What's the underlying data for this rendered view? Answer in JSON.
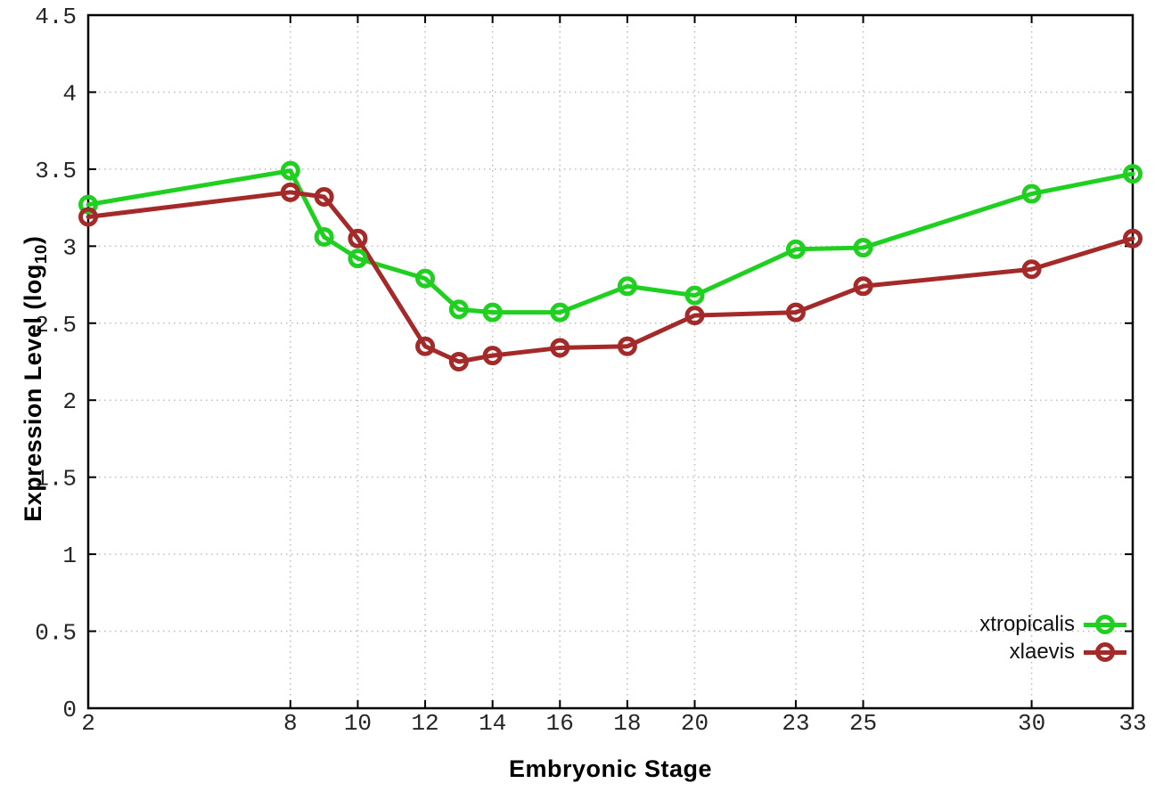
{
  "chart_data": {
    "type": "line",
    "title": "",
    "xlabel": "Embryonic Stage",
    "ylabel": "Expression Level (log10)",
    "xlim": [
      2,
      33
    ],
    "ylim": [
      0,
      4.5
    ],
    "grid": true,
    "legend_position": "inside-bottom-right",
    "x_ticks": [
      2,
      8,
      10,
      12,
      14,
      16,
      18,
      20,
      23,
      25,
      30,
      33
    ],
    "x_tick_labels": [
      "2",
      "8",
      "10",
      "12",
      "14",
      "16",
      "18",
      "20",
      "23",
      "25",
      "30",
      "33"
    ],
    "y_ticks": [
      0,
      0.5,
      1,
      1.5,
      2,
      2.5,
      3,
      3.5,
      4,
      4.5
    ],
    "y_tick_labels": [
      "0",
      "0.5",
      "1",
      "1.5",
      "2",
      "2.5",
      "3",
      "3.5",
      "4",
      "4.5"
    ],
    "x": [
      2,
      8,
      9,
      10,
      12,
      13,
      14,
      16,
      18,
      20,
      23,
      25,
      30,
      33
    ],
    "series": [
      {
        "name": "xtropicalis",
        "color": "#20d020",
        "marker": "open-circle",
        "values": [
          3.27,
          3.49,
          3.06,
          2.92,
          2.79,
          2.59,
          2.57,
          2.57,
          2.74,
          2.68,
          2.98,
          2.99,
          3.34,
          3.47
        ]
      },
      {
        "name": "xlaevis",
        "color": "#a42a2a",
        "marker": "open-circle",
        "values": [
          3.19,
          3.35,
          3.32,
          3.05,
          2.35,
          2.25,
          2.29,
          2.34,
          2.35,
          2.55,
          2.57,
          2.74,
          2.85,
          3.05
        ]
      }
    ]
  },
  "labels": {
    "xlabel": "Embryonic Stage",
    "ylabel_pre": "Expression Level (log",
    "ylabel_sub": "10",
    "ylabel_post": ")"
  },
  "colors": {
    "background": "#ffffff",
    "axis": "#000000",
    "grid": "#bcbcbc",
    "xtropicalis": "#20d020",
    "xlaevis": "#a42a2a"
  }
}
